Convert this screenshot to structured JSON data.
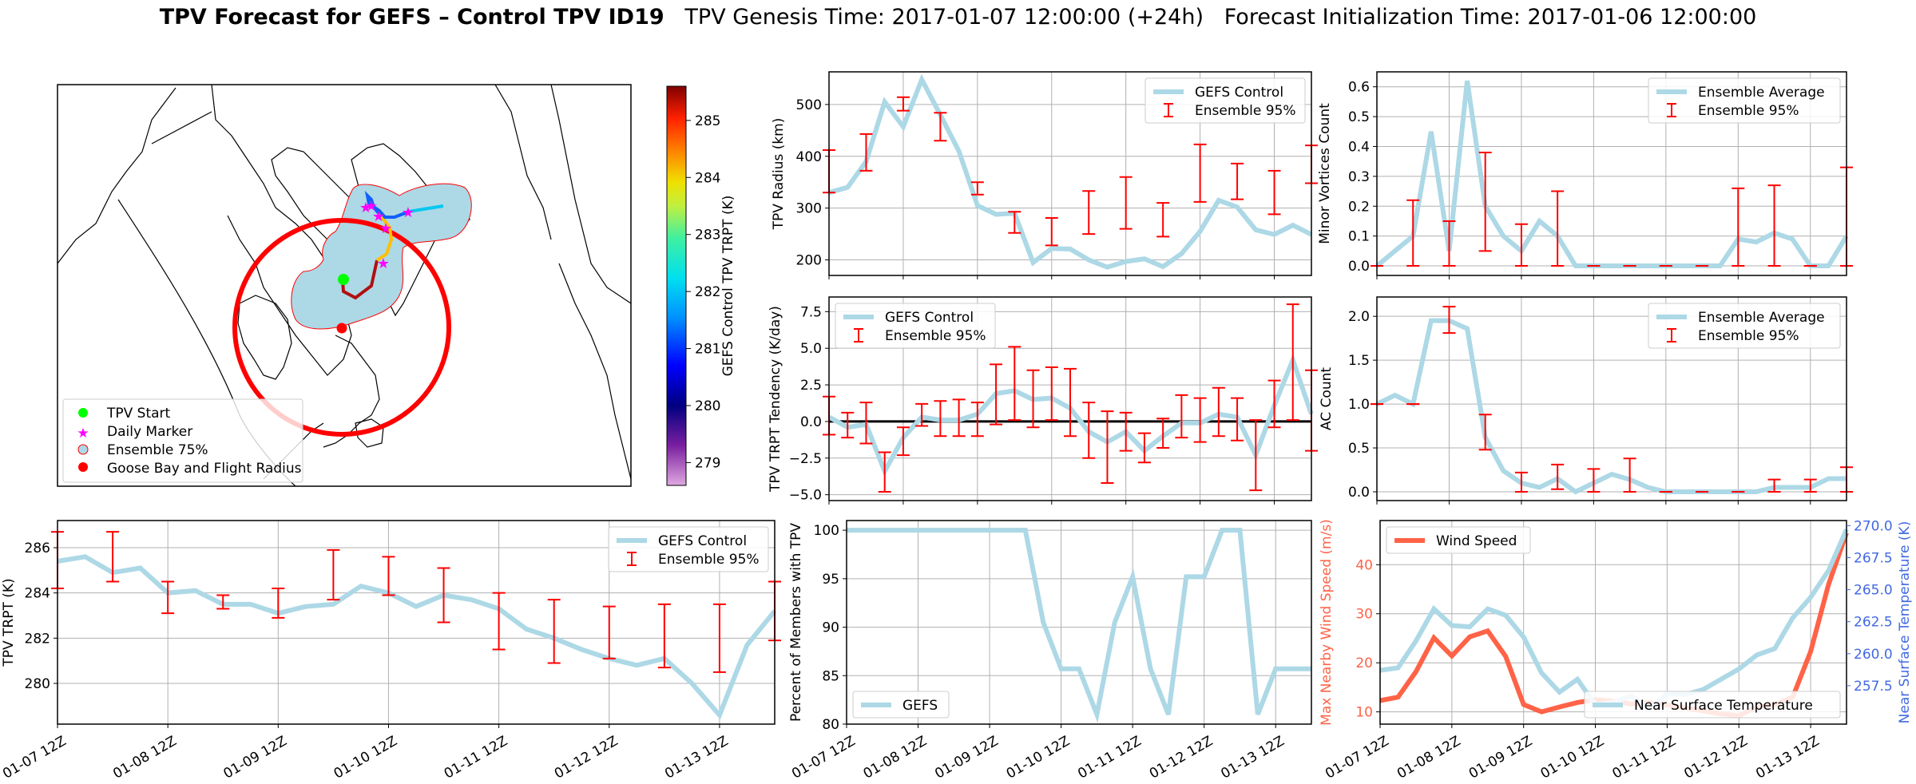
{
  "suptitle": {
    "bold": "TPV Forecast for GEFS – Control TPV ID19",
    "genesis": "TPV Genesis Time: 2017-01-07 12:00:00 (+24h)",
    "init": "Forecast Initialization Time: 2017-01-06 12:00:00"
  },
  "colors": {
    "line": "#add8e6",
    "errorbar": "#ff0000",
    "wind": "#ff6347",
    "temp_axis": "#4169e1",
    "grid": "#b0b0b0"
  },
  "map": {
    "legend": [
      "TPV Start",
      "Daily Marker",
      "Ensemble 75%",
      "Goose Bay and Flight Radius"
    ],
    "colorbar": {
      "label": "GEFS Control TPV TRPT (K)",
      "ticks": [
        "285",
        "284",
        "283",
        "282",
        "281",
        "280",
        "279"
      ],
      "min": 278.6,
      "max": 285.6
    }
  },
  "x_ticks": [
    "01-07 12Z",
    "01-08 12Z",
    "01-09 12Z",
    "01-10 12Z",
    "01-11 12Z",
    "01-12 12Z",
    "01-13 12Z"
  ],
  "chart_data": [
    {
      "id": "trpt",
      "type": "line",
      "ylabel": "TPV TRPT (K)",
      "ylim": [
        278.2,
        287.2
      ],
      "yticks": [
        280,
        282,
        284,
        286
      ],
      "ytick_labels": [
        "280",
        "282",
        "284",
        "286"
      ],
      "show_xticklabels": true,
      "legend": [
        "GEFS Control",
        "Ensemble 95%"
      ],
      "legend_loc": "top-right",
      "x": [
        0,
        0.25,
        0.5,
        0.75,
        1,
        1.25,
        1.5,
        1.75,
        2,
        2.25,
        2.5,
        2.75,
        3,
        3.25,
        3.5,
        3.75,
        4,
        4.25,
        4.5,
        4.75,
        5,
        5.25,
        5.5,
        5.75,
        6,
        6.25,
        6.5
      ],
      "values": [
        285.4,
        285.6,
        284.9,
        285.1,
        284.0,
        284.1,
        283.5,
        283.5,
        283.1,
        283.4,
        283.5,
        284.3,
        284.0,
        283.4,
        283.9,
        283.7,
        283.3,
        282.4,
        282.0,
        281.5,
        281.1,
        280.8,
        281.1,
        280.0,
        278.6,
        281.7,
        283.2
      ],
      "errorbars": [
        [
          0,
          284.2,
          286.7
        ],
        [
          0.5,
          284.5,
          286.7
        ],
        [
          1,
          283.1,
          284.5
        ],
        [
          1.5,
          283.3,
          283.9
        ],
        [
          2,
          282.9,
          284.2
        ],
        [
          2.5,
          283.7,
          285.9
        ],
        [
          3,
          283.9,
          285.6
        ],
        [
          3.5,
          282.7,
          285.1
        ],
        [
          4,
          281.5,
          284.0
        ],
        [
          4.5,
          280.9,
          283.7
        ],
        [
          5,
          281.1,
          283.4
        ],
        [
          5.5,
          280.7,
          283.5
        ],
        [
          6,
          280.5,
          283.5
        ],
        [
          6.5,
          281.9,
          284.5
        ]
      ]
    },
    {
      "id": "radius",
      "type": "line",
      "ylabel": "TPV Radius (km)",
      "ylim": [
        170,
        563
      ],
      "yticks": [
        200,
        300,
        400,
        500
      ],
      "ytick_labels": [
        "200",
        "300",
        "400",
        "500"
      ],
      "show_xticklabels": false,
      "legend": [
        "GEFS Control",
        "Ensemble 95%"
      ],
      "legend_loc": "top-right",
      "x": [
        0,
        0.25,
        0.5,
        0.75,
        1,
        1.25,
        1.5,
        1.75,
        2,
        2.25,
        2.5,
        2.75,
        3,
        3.25,
        3.5,
        3.75,
        4,
        4.25,
        4.5,
        4.75,
        5,
        5.25,
        5.5,
        5.75,
        6,
        6.25,
        6.5
      ],
      "values": [
        330,
        340,
        390,
        505,
        457,
        548,
        480,
        410,
        305,
        288,
        290,
        195,
        222,
        221,
        200,
        186,
        197,
        202,
        187,
        212,
        255,
        315,
        302,
        258,
        249,
        267,
        249
      ],
      "errorbars": [
        [
          0,
          330,
          412
        ],
        [
          0.5,
          372,
          443
        ],
        [
          1,
          488,
          514
        ],
        [
          1.5,
          430,
          484
        ],
        [
          2,
          326,
          350
        ],
        [
          2.5,
          252,
          293
        ],
        [
          3,
          228,
          281
        ],
        [
          3.5,
          250,
          333
        ],
        [
          4,
          260,
          360
        ],
        [
          4.5,
          245,
          310
        ],
        [
          5,
          312,
          423
        ],
        [
          5.5,
          317,
          386
        ],
        [
          6,
          288,
          372
        ],
        [
          6.5,
          348,
          421
        ]
      ]
    },
    {
      "id": "tendency",
      "type": "line",
      "ylabel": "TPV TRPT Tendency (K/day)",
      "ylim": [
        -5.4,
        8.5
      ],
      "yticks": [
        -5,
        -2.5,
        0,
        2.5,
        5,
        7.5
      ],
      "ytick_labels": [
        "−5.0",
        "−2.5",
        "0.0",
        "2.5",
        "5.0",
        "7.5"
      ],
      "zero_line": true,
      "show_xticklabels": false,
      "legend": [
        "GEFS Control",
        "Ensemble 95%"
      ],
      "legend_loc": "top-left",
      "x": [
        0,
        0.25,
        0.5,
        0.75,
        1,
        1.25,
        1.5,
        1.75,
        2,
        2.25,
        2.5,
        2.75,
        3,
        3.25,
        3.5,
        3.75,
        4,
        4.25,
        4.5,
        4.75,
        5,
        5.25,
        5.5,
        5.75,
        6,
        6.25,
        6.5
      ],
      "values": [
        0.3,
        -0.4,
        -0.2,
        -3.4,
        -1.1,
        0.3,
        0.1,
        0.1,
        0.5,
        1.9,
        2.1,
        1.5,
        1.6,
        0.9,
        -0.7,
        -1.4,
        -0.7,
        -2.0,
        -1.0,
        -0.1,
        -0.1,
        0.5,
        0.3,
        -2.3,
        1.1,
        4.2,
        0.5
      ],
      "errorbars": [
        [
          0,
          -0.9,
          1.7
        ],
        [
          0.25,
          -1.1,
          0.6
        ],
        [
          0.5,
          -1.5,
          1.3
        ],
        [
          0.75,
          -4.8,
          -2.1
        ],
        [
          1,
          -2.3,
          -0.4
        ],
        [
          1.25,
          -0.3,
          1.2
        ],
        [
          1.5,
          -1.0,
          1.4
        ],
        [
          1.75,
          -1.0,
          1.5
        ],
        [
          2,
          -1.0,
          1.3
        ],
        [
          2.25,
          -0.2,
          3.9
        ],
        [
          2.5,
          0.1,
          5.1
        ],
        [
          2.75,
          -0.4,
          3.5
        ],
        [
          3,
          0.1,
          3.7
        ],
        [
          3.25,
          -1.0,
          3.6
        ],
        [
          3.5,
          -2.5,
          1.3
        ],
        [
          3.75,
          -4.2,
          0.7
        ],
        [
          4,
          -2.0,
          0.6
        ],
        [
          4.25,
          -2.8,
          -0.8
        ],
        [
          4.5,
          -1.8,
          0.2
        ],
        [
          4.75,
          -1.1,
          1.8
        ],
        [
          5,
          -1.4,
          1.6
        ],
        [
          5.25,
          -1.0,
          2.3
        ],
        [
          5.5,
          -1.3,
          1.6
        ],
        [
          5.75,
          -4.7,
          0.1
        ],
        [
          6,
          -0.4,
          2.8
        ],
        [
          6.25,
          0.1,
          8.0
        ],
        [
          6.5,
          -2.0,
          3.5
        ]
      ]
    },
    {
      "id": "members",
      "type": "line",
      "ylabel": "Percent of Members with TPV",
      "ylim": [
        80,
        101
      ],
      "yticks": [
        80,
        85,
        90,
        95,
        100
      ],
      "ytick_labels": [
        "80",
        "85",
        "90",
        "95",
        "100"
      ],
      "show_xticklabels": true,
      "legend": [
        "GEFS"
      ],
      "legend_loc": "bottom-left",
      "x": [
        0,
        0.25,
        0.5,
        0.75,
        1,
        1.25,
        1.5,
        1.75,
        2,
        2.25,
        2.5,
        2.75,
        3,
        3.25,
        3.5,
        3.75,
        4,
        4.25,
        4.5,
        4.75,
        5,
        5.25,
        5.5,
        5.75,
        6,
        6.25,
        6.5
      ],
      "values": [
        100,
        100,
        100,
        100,
        100,
        100,
        100,
        100,
        100,
        100,
        100,
        90.5,
        85.7,
        85.7,
        81.0,
        90.5,
        95.2,
        85.7,
        81.0,
        95.2,
        95.2,
        100,
        100,
        81.0,
        85.7,
        85.7,
        85.7
      ]
    },
    {
      "id": "minor",
      "type": "line",
      "ylabel": "Minor Vortices Count",
      "ylim": [
        -0.032,
        0.65
      ],
      "yticks": [
        0,
        0.1,
        0.2,
        0.3,
        0.4,
        0.5,
        0.6
      ],
      "ytick_labels": [
        "0.0",
        "0.1",
        "0.2",
        "0.3",
        "0.4",
        "0.5",
        "0.6"
      ],
      "show_xticklabels": false,
      "legend": [
        "Ensemble Average",
        "Ensemble 95%"
      ],
      "legend_loc": "top-right",
      "x": [
        0,
        0.25,
        0.5,
        0.75,
        1,
        1.25,
        1.5,
        1.75,
        2,
        2.25,
        2.5,
        2.75,
        3,
        3.25,
        3.5,
        3.75,
        4,
        4.25,
        4.5,
        4.75,
        5,
        5.25,
        5.5,
        5.75,
        6,
        6.25,
        6.5
      ],
      "values": [
        0,
        0.05,
        0.1,
        0.45,
        0.05,
        0.62,
        0.2,
        0.1,
        0.05,
        0.15,
        0.1,
        0,
        0,
        0,
        0,
        0,
        0,
        0,
        0,
        0,
        0.09,
        0.08,
        0.11,
        0.09,
        0,
        0,
        0.1
      ],
      "errorbars": [
        [
          0,
          0,
          0
        ],
        [
          0.5,
          0,
          0.22
        ],
        [
          1,
          0,
          0.15
        ],
        [
          1.5,
          0.05,
          0.38
        ],
        [
          2,
          0,
          0.14
        ],
        [
          2.5,
          0,
          0.25
        ],
        [
          3,
          0,
          0
        ],
        [
          3.5,
          0,
          0
        ],
        [
          4,
          0,
          0
        ],
        [
          4.5,
          0,
          0
        ],
        [
          5,
          0,
          0.26
        ],
        [
          5.5,
          0,
          0.27
        ],
        [
          6,
          0,
          0
        ],
        [
          6.5,
          0,
          0.33
        ]
      ]
    },
    {
      "id": "ac",
      "type": "line",
      "ylabel": "AC Count",
      "ylim": [
        -0.1,
        2.22
      ],
      "yticks": [
        0,
        0.5,
        1,
        1.5,
        2
      ],
      "ytick_labels": [
        "0.0",
        "0.5",
        "1.0",
        "1.5",
        "2.0"
      ],
      "show_xticklabels": false,
      "legend": [
        "Ensemble Average",
        "Ensemble 95%"
      ],
      "legend_loc": "top-right",
      "x": [
        0,
        0.25,
        0.5,
        0.75,
        1,
        1.25,
        1.5,
        1.75,
        2,
        2.25,
        2.5,
        2.75,
        3,
        3.25,
        3.5,
        3.75,
        4,
        4.25,
        4.5,
        4.75,
        5,
        5.25,
        5.5,
        5.75,
        6,
        6.25,
        6.5
      ],
      "values": [
        1.0,
        1.1,
        1.0,
        1.95,
        1.95,
        1.86,
        0.62,
        0.24,
        0.1,
        0.05,
        0.15,
        0,
        0.1,
        0.2,
        0.14,
        0.05,
        0,
        0,
        0,
        0,
        0,
        0,
        0.05,
        0.05,
        0.05,
        0.15,
        0.15
      ],
      "errorbars": [
        [
          0,
          1,
          1
        ],
        [
          0.5,
          1,
          1
        ],
        [
          1,
          1.81,
          2.11
        ],
        [
          1.5,
          0.48,
          0.88
        ],
        [
          2,
          0,
          0.22
        ],
        [
          2.5,
          0.03,
          0.31
        ],
        [
          3,
          0,
          0.26
        ],
        [
          3.5,
          0,
          0.38
        ],
        [
          4,
          0,
          0
        ],
        [
          4.5,
          0,
          0
        ],
        [
          5,
          0,
          0
        ],
        [
          5.5,
          0,
          0.14
        ],
        [
          6,
          0,
          0.14
        ],
        [
          6.5,
          0,
          0.28
        ]
      ]
    },
    {
      "id": "wind",
      "type": "line",
      "ylabel": "Max Nearby Wind Speed (m/s)",
      "ylim": [
        7.5,
        49
      ],
      "yticks": [
        10,
        20,
        30,
        40
      ],
      "ytick_labels": [
        "10",
        "20",
        "30",
        "40"
      ],
      "ylabel2": "Near Surface Temperature (K)",
      "ylim2": [
        254.5,
        270.4
      ],
      "yticks2": [
        257.5,
        260,
        262.5,
        265,
        267.5,
        270
      ],
      "ytick_labels2": [
        "257.5",
        "260.0",
        "262.5",
        "265.0",
        "267.5",
        "270.0"
      ],
      "show_xticklabels": true,
      "legend": [
        "Wind Speed"
      ],
      "legend2": [
        "Near Surface Temperature"
      ],
      "legend_loc": "top-left",
      "legend2_loc": "bottom-right",
      "x": [
        0,
        0.25,
        0.5,
        0.75,
        1,
        1.25,
        1.5,
        1.75,
        2,
        2.25,
        2.5,
        2.75,
        3,
        3.25,
        3.5,
        3.75,
        4,
        4.25,
        4.5,
        4.75,
        5,
        5.25,
        5.5,
        5.75,
        6,
        6.25,
        6.5
      ],
      "series": [
        {
          "name": "Wind Speed",
          "axis": "left",
          "values": [
            12.3,
            13.0,
            18.2,
            25.1,
            21.4,
            25.3,
            26.5,
            21.3,
            11.5,
            10.0,
            11.0,
            11.9,
            12.5,
            12.2,
            11.6,
            11.9,
            11.4,
            10.8,
            10.2,
            9.6,
            9.2,
            11.0,
            11.5,
            13.0,
            22.3,
            36.0,
            46.5
          ]
        },
        {
          "name": "Near Surface Temperature",
          "axis": "right",
          "values": [
            258.7,
            258.9,
            261.0,
            263.5,
            262.2,
            262.1,
            263.5,
            263.0,
            261.3,
            258.5,
            257.0,
            258.0,
            256.0,
            256.2,
            256.7,
            255.7,
            256.9,
            256.8,
            257.2,
            258.0,
            258.8,
            259.9,
            260.4,
            262.8,
            264.4,
            266.5,
            269.7
          ]
        }
      ]
    }
  ]
}
